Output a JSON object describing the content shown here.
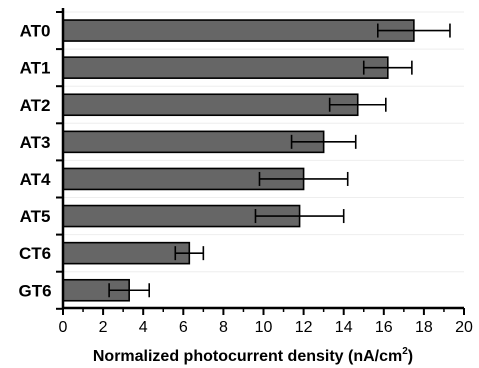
{
  "chart_data": {
    "type": "bar",
    "orientation": "horizontal",
    "categories": [
      "AT0",
      "AT1",
      "AT2",
      "AT3",
      "AT4",
      "AT5",
      "CT6",
      "GT6"
    ],
    "values": [
      17.5,
      16.2,
      14.7,
      13.0,
      12.0,
      11.8,
      6.3,
      3.3
    ],
    "errors": [
      1.8,
      1.2,
      1.4,
      1.6,
      2.2,
      2.2,
      0.7,
      1.0
    ],
    "xlabel": "Normalized photocurrent density (nA/cm",
    "xlabel_superscript": "2",
    "xlabel_suffix": ")",
    "xlim": [
      0,
      20
    ],
    "xticks": [
      "0",
      "2",
      "4",
      "6",
      "8",
      "10",
      "12",
      "14",
      "16",
      "18",
      "20"
    ],
    "grid": false,
    "bar_color": "#666666",
    "error_color": "#000000"
  }
}
